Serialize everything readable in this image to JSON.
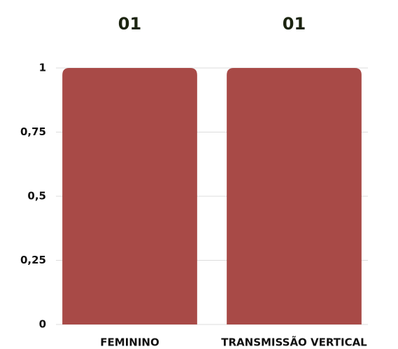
{
  "chart_data": {
    "type": "bar",
    "categories": [
      "FEMININO",
      "TRANSMISSÃO VERTICAL"
    ],
    "values": [
      1,
      1
    ],
    "value_labels": [
      "01",
      "01"
    ],
    "color": "#a84a47",
    "ylim": [
      0,
      1
    ],
    "yticks": [
      0,
      {
        "value": 0.25,
        "label": "0,25"
      },
      {
        "value": 0.5,
        "label": "0,5"
      },
      {
        "value": 0.75,
        "label": "0,75"
      },
      1
    ],
    "grid": true
  }
}
